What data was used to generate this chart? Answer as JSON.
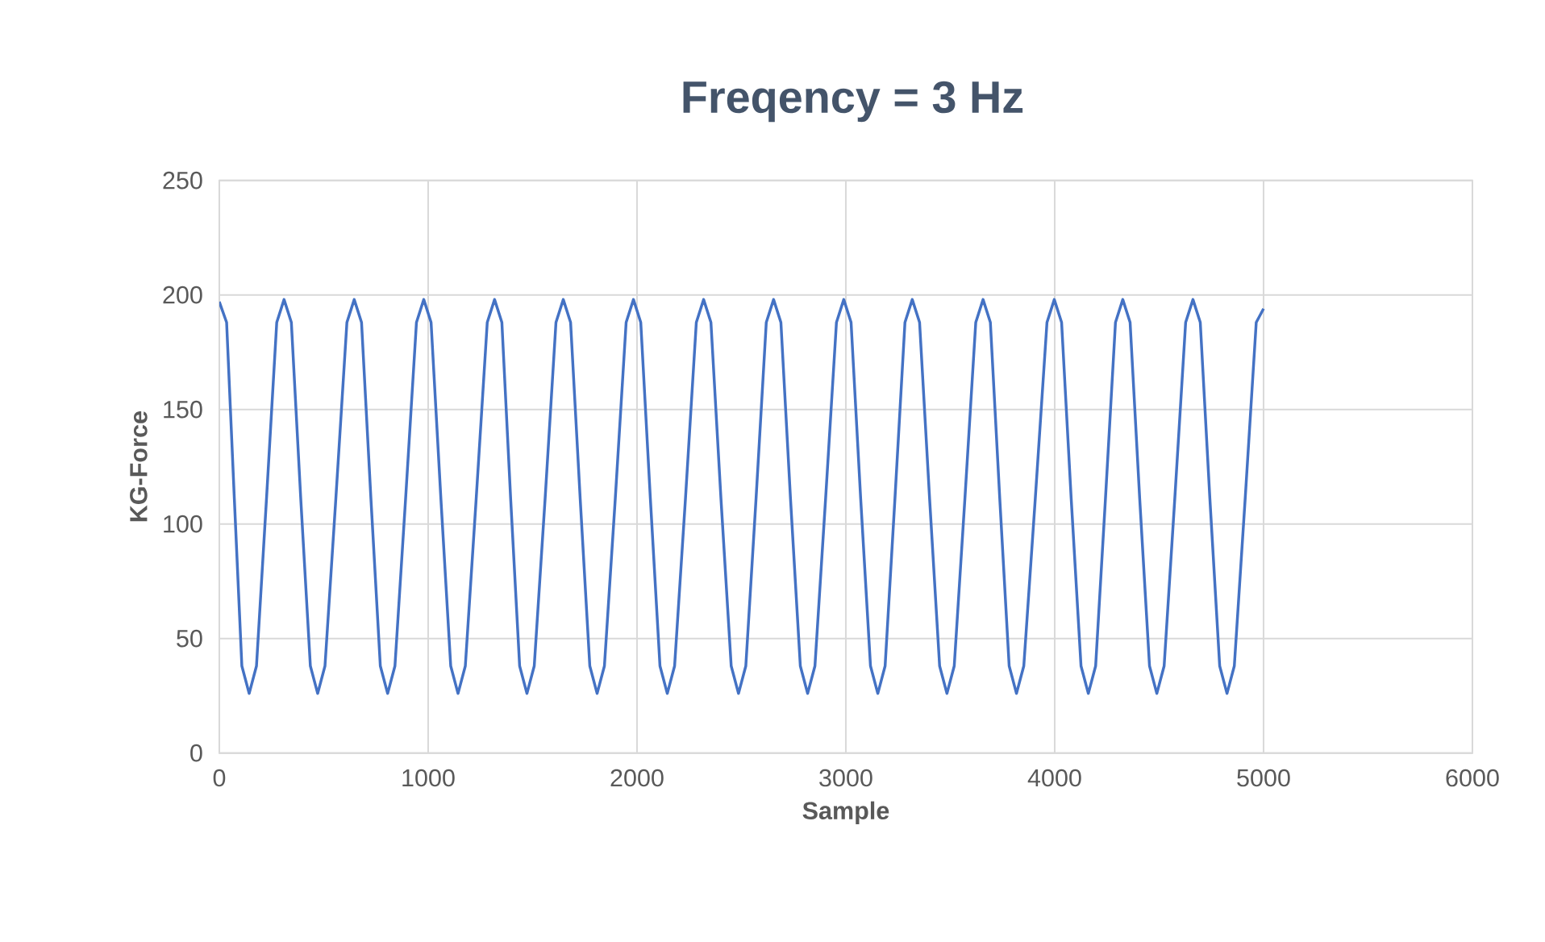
{
  "chart_data": {
    "type": "line",
    "title": "Freqency = 3 Hz",
    "xlabel": "Sample",
    "ylabel": "KG-Force",
    "x": [
      0,
      35,
      72,
      108,
      143,
      178,
      226,
      275,
      310,
      345,
      390,
      436,
      471,
      506,
      558,
      611,
      646,
      681,
      726,
      771,
      806,
      841,
      892,
      944,
      979,
      1014,
      1061,
      1108,
      1143,
      1178,
      1230,
      1283,
      1318,
      1353,
      1395,
      1438,
      1473,
      1508,
      1560,
      1612,
      1647,
      1682,
      1728,
      1774,
      1809,
      1844,
      1896,
      1948,
      1983,
      2018,
      2064,
      2110,
      2145,
      2180,
      2232,
      2284,
      2319,
      2354,
      2402,
      2451,
      2486,
      2521,
      2570,
      2619,
      2654,
      2689,
      2735,
      2782,
      2817,
      2852,
      2903,
      2955,
      2990,
      3025,
      3071,
      3118,
      3153,
      3188,
      3235,
      3283,
      3318,
      3353,
      3401,
      3449,
      3484,
      3519,
      3570,
      3622,
      3657,
      3692,
      3737,
      3782,
      3817,
      3852,
      3907,
      3963,
      3998,
      4033,
      4079,
      4126,
      4161,
      4196,
      4243,
      4291,
      4326,
      4361,
      4407,
      4454,
      4489,
      4524,
      4575,
      4627,
      4662,
      4697,
      4743,
      4790,
      4825,
      4860,
      4912,
      4965,
      5000
    ],
    "values": [
      197,
      188,
      111,
      38,
      26,
      38,
      111,
      188,
      198,
      188,
      111,
      38,
      26,
      38,
      111,
      188,
      198,
      188,
      111,
      38,
      26,
      38,
      111,
      188,
      198,
      188,
      111,
      38,
      26,
      38,
      111,
      188,
      198,
      188,
      111,
      38,
      26,
      38,
      111,
      188,
      198,
      188,
      111,
      38,
      26,
      38,
      111,
      188,
      198,
      188,
      111,
      38,
      26,
      38,
      111,
      188,
      198,
      188,
      111,
      38,
      26,
      38,
      111,
      188,
      198,
      188,
      111,
      38,
      26,
      38,
      111,
      188,
      198,
      188,
      111,
      38,
      26,
      38,
      111,
      188,
      198,
      188,
      111,
      38,
      26,
      38,
      111,
      188,
      198,
      188,
      111,
      38,
      26,
      38,
      111,
      188,
      198,
      188,
      111,
      38,
      26,
      38,
      111,
      188,
      198,
      188,
      111,
      38,
      26,
      38,
      111,
      188,
      198,
      188,
      111,
      38,
      26,
      38,
      111,
      188,
      194
    ],
    "color": "#4472c4",
    "xlim": [
      0,
      6000
    ],
    "ylim": [
      0,
      250
    ],
    "xticks": [
      0,
      1000,
      2000,
      3000,
      4000,
      5000,
      6000
    ],
    "yticks": [
      0,
      50,
      100,
      150,
      200,
      250
    ],
    "grid": true
  }
}
